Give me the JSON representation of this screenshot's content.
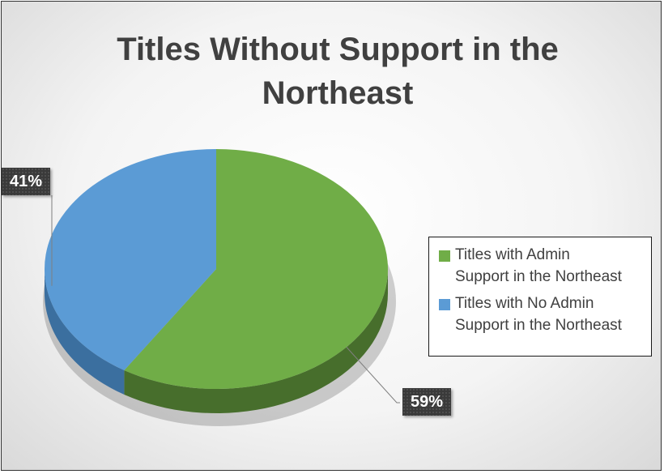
{
  "chart_data": {
    "type": "pie",
    "title_lines": [
      "Titles Without Support in the",
      "Northeast"
    ],
    "slices": [
      {
        "name": "Titles with Admin Support in the Northeast",
        "value": 59,
        "label": "59%",
        "color": "#70ad47",
        "side_color": "#476e2c"
      },
      {
        "name": "Titles with No Admin Support in the Northeast",
        "value": 41,
        "label": "41%",
        "color": "#5b9bd5",
        "side_color": "#3b6f9f"
      }
    ],
    "legend_lines": [
      [
        "Titles with Admin",
        "Support in the Northeast"
      ],
      [
        "Titles with No Admin",
        "Support in the Northeast"
      ]
    ],
    "legend_position": "right",
    "style": "3d"
  }
}
